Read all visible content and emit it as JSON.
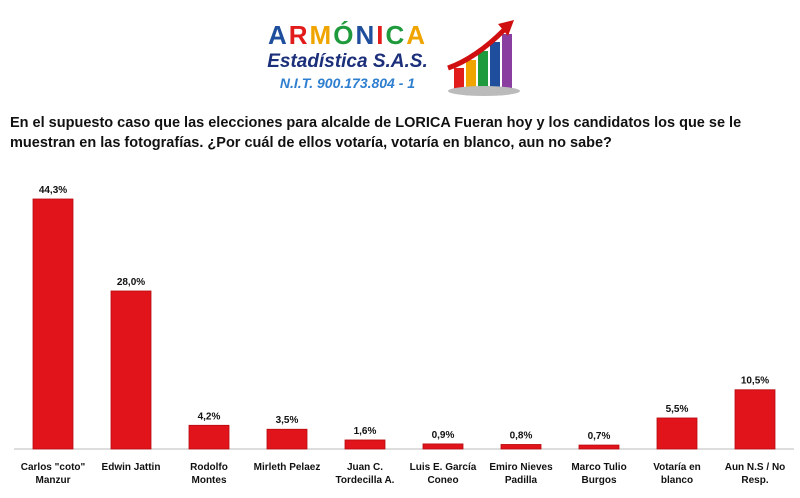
{
  "logo": {
    "brand_letters": [
      {
        "t": "A",
        "color": "#1f4e9c"
      },
      {
        "t": "R",
        "color": "#e21b1b"
      },
      {
        "t": "M",
        "color": "#f0a400"
      },
      {
        "t": "Ó",
        "color": "#1f9a3c"
      },
      {
        "t": "N",
        "color": "#1f4e9c"
      },
      {
        "t": "I",
        "color": "#e21b1b"
      },
      {
        "t": "C",
        "color": "#1f9a3c"
      },
      {
        "t": "A",
        "color": "#f0a400"
      }
    ],
    "subtitle": "Estadística S.A.S.",
    "nit": "N.I.T. 900.173.804 - 1",
    "graphic_icon": "growth-bar-chart-arrow-icon"
  },
  "question": "En el supuesto caso que las elecciones para alcalde de LORICA Fueran hoy y los candidatos los que se le muestran en las fotografías. ¿Por cuál de ellos votaría, votaría en blanco, aun no sabe?",
  "chart_data": {
    "type": "bar",
    "categories": [
      [
        "Carlos \"coto\"",
        "Manzur"
      ],
      [
        "Edwin Jattin"
      ],
      [
        "Rodolfo",
        "Montes"
      ],
      [
        "Mirleth Pelaez"
      ],
      [
        "Juan C.",
        "Tordecilla A."
      ],
      [
        "Luis E. García",
        "Coneo"
      ],
      [
        "Emiro Nieves",
        "Padilla"
      ],
      [
        "Marco Tulio",
        "Burgos"
      ],
      [
        "Votaría en",
        "blanco"
      ],
      [
        "Aun N.S / No",
        "Resp."
      ]
    ],
    "values": [
      44.3,
      28.0,
      4.2,
      3.5,
      1.6,
      0.9,
      0.8,
      0.7,
      5.5,
      10.5
    ],
    "value_labels": [
      "44,3%",
      "28,0%",
      "4,2%",
      "3,5%",
      "1,6%",
      "0,9%",
      "0,8%",
      "0,7%",
      "5,5%",
      "10,5%"
    ],
    "bar_color": "#e0141a",
    "ylim": [
      0,
      44.3
    ],
    "grid": false,
    "legend": "none"
  }
}
